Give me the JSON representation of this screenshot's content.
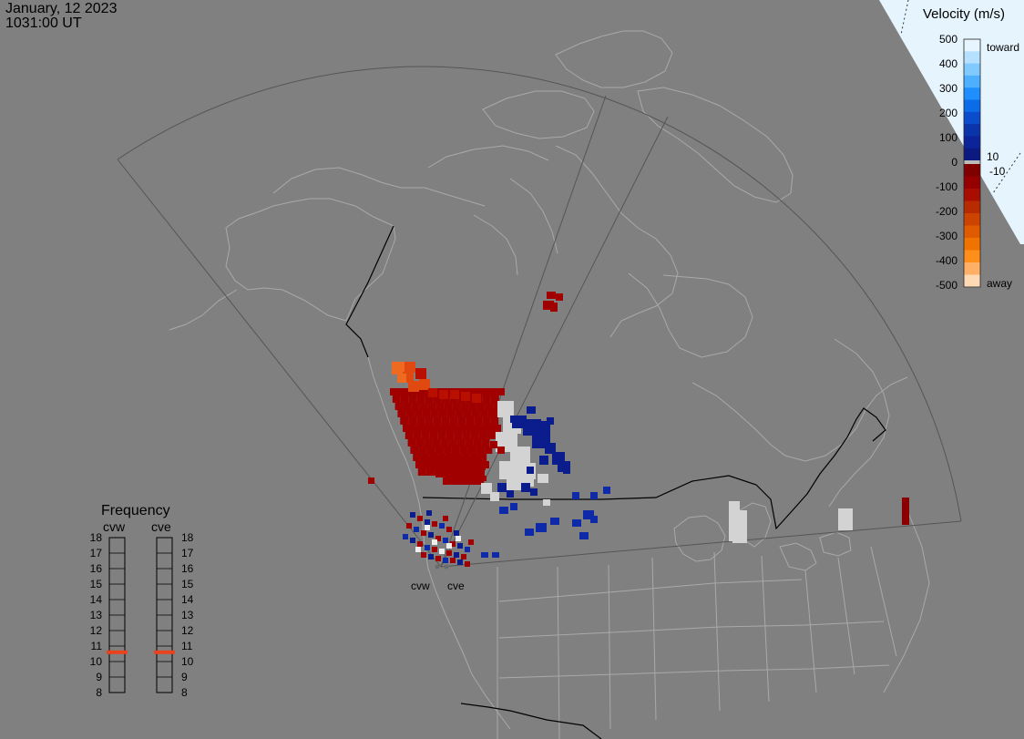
{
  "date_text": "January, 12 2023",
  "time_text": "1031:00 UT",
  "colors": {
    "background": "#808080",
    "land_outline": "#a9a9a9",
    "border": "#000000",
    "fov_outline": "#555555",
    "legend_panel": "#e6f4fd",
    "ground_scatter": "#d3d3d3",
    "frequency_marker": "#e8431c"
  },
  "colorbar": {
    "title": "Velocity (m/s)",
    "toward_label": "toward",
    "away_label": "away",
    "small_labels": [
      "10",
      "-10"
    ],
    "ticks": [
      "500",
      "400",
      "300",
      "200",
      "100",
      "0",
      "-100",
      "-200",
      "-300",
      "-400",
      "-500"
    ],
    "gradient_toward": [
      "#e6f5ff",
      "#b5e0ff",
      "#80caff",
      "#4db0ff",
      "#1f8fff",
      "#0a6ce8",
      "#0a4ccc",
      "#0a35aa",
      "#0b2499",
      "#0b1a80"
    ],
    "gradient_away": [
      "#800000",
      "#960000",
      "#a80d00",
      "#b82a00",
      "#cc4400",
      "#e05a00",
      "#f07300",
      "#ff8f1a",
      "#ffb066",
      "#ffd9b3"
    ]
  },
  "stations": [
    {
      "id": "cvw",
      "label": "cvw"
    },
    {
      "id": "cve",
      "label": "cve"
    }
  ],
  "frequency_panel": {
    "title": "Frequency",
    "columns": [
      "cvw",
      "cve"
    ],
    "scale": [
      "18",
      "17",
      "16",
      "15",
      "14",
      "13",
      "12",
      "11",
      "10",
      "9",
      "8"
    ],
    "current_mhz": {
      "cvw": 10.6,
      "cve": 10.6
    }
  }
}
